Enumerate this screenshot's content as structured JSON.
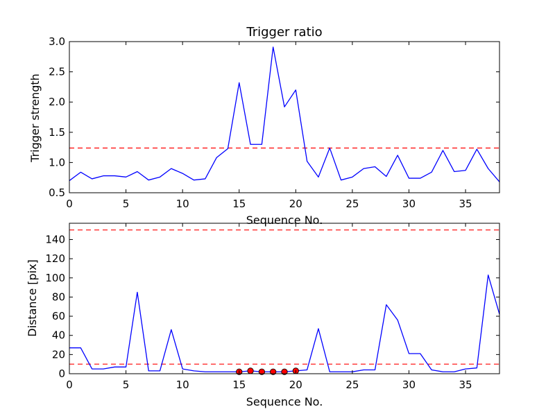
{
  "chart_data": [
    {
      "type": "line",
      "title": "Trigger ratio",
      "xlabel": "Sequence No.",
      "ylabel": "Trigger strength",
      "xlim": [
        0,
        38
      ],
      "ylim": [
        0.5,
        3.0
      ],
      "xticks": [
        0,
        5,
        10,
        15,
        20,
        25,
        30,
        35
      ],
      "yticks": [
        0.5,
        1.0,
        1.5,
        2.0,
        2.5,
        3.0
      ],
      "xtick_labels": [
        "0",
        "5",
        "10",
        "15",
        "20",
        "25",
        "30",
        "35"
      ],
      "ytick_labels": [
        "0.5",
        "1.0",
        "1.5",
        "2.0",
        "2.5",
        "3.0"
      ],
      "grid": false,
      "series": [
        {
          "color": "#0000ff",
          "style": "solid",
          "x": [
            0,
            1,
            2,
            3,
            4,
            5,
            6,
            7,
            8,
            9,
            10,
            11,
            12,
            13,
            14,
            15,
            16,
            17,
            18,
            19,
            20,
            21,
            22,
            23,
            24,
            25,
            26,
            27,
            28,
            29,
            30,
            31,
            32,
            33,
            34,
            35,
            36,
            37,
            38
          ],
          "y": [
            0.7,
            0.84,
            0.73,
            0.78,
            0.78,
            0.76,
            0.85,
            0.71,
            0.76,
            0.9,
            0.82,
            0.71,
            0.73,
            1.08,
            1.23,
            2.32,
            1.3,
            1.3,
            2.91,
            1.92,
            2.2,
            1.02,
            0.76,
            1.24,
            0.71,
            0.76,
            0.9,
            0.93,
            0.77,
            1.12,
            0.74,
            0.74,
            0.84,
            1.2,
            0.85,
            0.87,
            1.22,
            0.9,
            0.68
          ]
        }
      ],
      "reference_lines": [
        {
          "y": 1.24,
          "color": "#ff0000",
          "style": "dashed"
        }
      ]
    },
    {
      "type": "line",
      "title": "",
      "xlabel": "Sequence No.",
      "ylabel": "Distance [pix]",
      "xlim": [
        0,
        38
      ],
      "ylim": [
        0,
        157
      ],
      "xticks": [
        0,
        5,
        10,
        15,
        20,
        25,
        30,
        35
      ],
      "yticks": [
        0,
        20,
        40,
        60,
        80,
        100,
        120,
        140
      ],
      "xtick_labels": [
        "0",
        "5",
        "10",
        "15",
        "20",
        "25",
        "30",
        "35"
      ],
      "ytick_labels": [
        "0",
        "20",
        "40",
        "60",
        "80",
        "100",
        "120",
        "140"
      ],
      "grid": false,
      "series": [
        {
          "color": "#0000ff",
          "style": "solid",
          "x": [
            0,
            1,
            2,
            3,
            4,
            5,
            6,
            7,
            8,
            9,
            10,
            11,
            12,
            13,
            14,
            15,
            16,
            17,
            18,
            19,
            20,
            21,
            22,
            23,
            24,
            25,
            26,
            27,
            28,
            29,
            30,
            31,
            32,
            33,
            34,
            35,
            36,
            37,
            38
          ],
          "y": [
            27,
            27,
            5,
            5,
            7,
            7,
            85,
            3,
            3,
            46,
            5,
            3,
            2,
            2,
            2,
            2,
            3,
            2,
            2,
            2,
            3,
            4,
            47,
            2,
            2,
            2,
            4,
            4,
            72,
            56,
            21,
            21,
            4,
            2,
            2,
            5,
            6,
            103,
            62
          ]
        }
      ],
      "markers": {
        "color": "#ff0000",
        "x": [
          15,
          16,
          17,
          18,
          19,
          20
        ],
        "y": [
          2,
          3,
          2,
          2,
          2,
          3
        ]
      },
      "reference_lines": [
        {
          "y": 150,
          "color": "#ff0000",
          "style": "dashed"
        },
        {
          "y": 10,
          "color": "#ff0000",
          "style": "dashed"
        }
      ]
    }
  ]
}
